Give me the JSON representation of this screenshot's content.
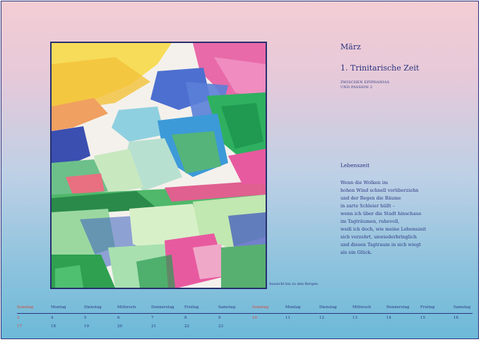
{
  "header": {
    "month": "März",
    "season": "1. Trinitarische Zeit",
    "subtitle_line1": "ZWISCHEN EPIPHANIAS",
    "subtitle_line2": "UND PASSION 2"
  },
  "artwork": {
    "caption": "Aussicht bis zu den Bergen"
  },
  "poem": {
    "title": "Lebenszeit",
    "lines": [
      "Wenn die Wolken im",
      "hohen Wind schnell vorüberziehn",
      "und der Regen die Bäume",
      "in zarte Schleier hüllt –",
      "wenn ich über die Stadt hinschaue",
      "im Tagträumen, ruhevoll,",
      "weiß ich doch, wie meine Lebenszeit",
      "sich verzehrt, unwiederbringlich",
      "und diesen Tagtraum in sich wiegt",
      "als ein Glück."
    ]
  },
  "calendar": {
    "weekdays": [
      "Sonntag",
      "Montag",
      "Dienstag",
      "Mittwoch",
      "Donnerstag",
      "Freitag",
      "Samstag",
      "Sonntag",
      "Montag",
      "Dienstag",
      "Mittwoch",
      "Donnerstag",
      "Freitag",
      "Samstag"
    ],
    "row1": [
      "3",
      "4",
      "5",
      "6",
      "7",
      "8",
      "9",
      "10",
      "11",
      "12",
      "13",
      "14",
      "15",
      "16"
    ],
    "row2": [
      "17",
      "18",
      "19",
      "20",
      "21",
      "22",
      "23"
    ],
    "colors": {
      "sunday": "#d8483a",
      "text": "#2c3480"
    }
  }
}
